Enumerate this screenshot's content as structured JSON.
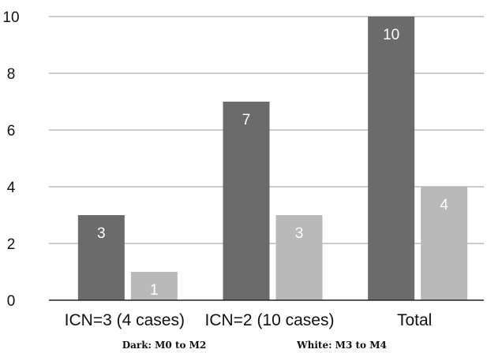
{
  "chart_data": {
    "type": "bar",
    "categories": [
      "ICN=3 (4 cases)",
      "ICN=2 (10 cases)",
      "Total"
    ],
    "series": [
      {
        "values": [
          3,
          7,
          10
        ],
        "color": "#6b6b6b"
      },
      {
        "values": [
          1,
          3,
          4
        ],
        "color": "#b9b9b9"
      }
    ],
    "ylim": [
      0,
      10
    ],
    "yticks": [
      0,
      2,
      4,
      6,
      8,
      10
    ],
    "grid": true,
    "legend_notes": [
      "Dark: M0 to M2",
      "White: M3 to M4"
    ]
  }
}
